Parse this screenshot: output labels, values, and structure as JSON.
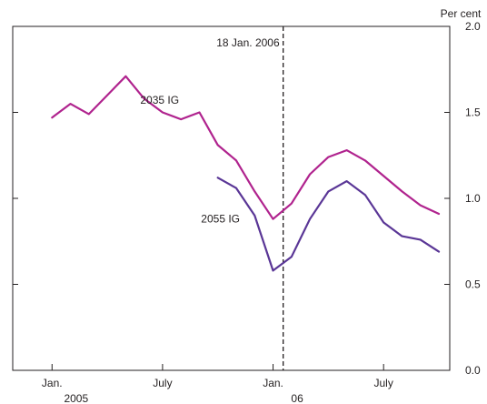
{
  "chart_data": {
    "type": "line",
    "unit_label": "Per cent",
    "title": "",
    "xlabel": "",
    "ylabel": "",
    "ylim": [
      0.0,
      2.0
    ],
    "y_ticks": [
      "0.0",
      "0.5",
      "1.0",
      "1.5",
      "2.0"
    ],
    "x_ticks": [
      "Jan.",
      "July",
      "Jan.",
      "July"
    ],
    "year_labels": [
      "2005",
      "06"
    ],
    "x_range": [
      "2004-12",
      "2006-10"
    ],
    "grid": false,
    "legend": "none",
    "annotation": {
      "label": "18 Jan. 2006",
      "date": "2006-01-18"
    },
    "series": [
      {
        "name": "2035 IG",
        "color": "#b0238e",
        "points": [
          [
            "2005-01",
            1.47
          ],
          [
            "2005-02",
            1.55
          ],
          [
            "2005-03",
            1.49
          ],
          [
            "2005-04",
            1.6
          ],
          [
            "2005-05",
            1.71
          ],
          [
            "2005-06",
            1.58
          ],
          [
            "2005-07",
            1.5
          ],
          [
            "2005-08",
            1.46
          ],
          [
            "2005-09",
            1.5
          ],
          [
            "2005-10",
            1.31
          ],
          [
            "2005-11",
            1.22
          ],
          [
            "2005-12",
            1.04
          ],
          [
            "2006-01",
            0.88
          ],
          [
            "2006-02",
            0.97
          ],
          [
            "2006-03",
            1.14
          ],
          [
            "2006-04",
            1.24
          ],
          [
            "2006-05",
            1.28
          ],
          [
            "2006-06",
            1.22
          ],
          [
            "2006-07",
            1.13
          ],
          [
            "2006-08",
            1.04
          ],
          [
            "2006-09",
            0.96
          ],
          [
            "2006-10",
            0.91
          ]
        ]
      },
      {
        "name": "2055 IG",
        "color": "#5a3696",
        "points": [
          [
            "2005-10",
            1.12
          ],
          [
            "2005-11",
            1.06
          ],
          [
            "2005-12",
            0.9
          ],
          [
            "2006-01",
            0.58
          ],
          [
            "2006-02",
            0.66
          ],
          [
            "2006-03",
            0.88
          ],
          [
            "2006-04",
            1.04
          ],
          [
            "2006-05",
            1.1
          ],
          [
            "2006-06",
            1.02
          ],
          [
            "2006-07",
            0.86
          ],
          [
            "2006-08",
            0.78
          ],
          [
            "2006-09",
            0.76
          ],
          [
            "2006-10",
            0.69
          ]
        ]
      }
    ]
  }
}
